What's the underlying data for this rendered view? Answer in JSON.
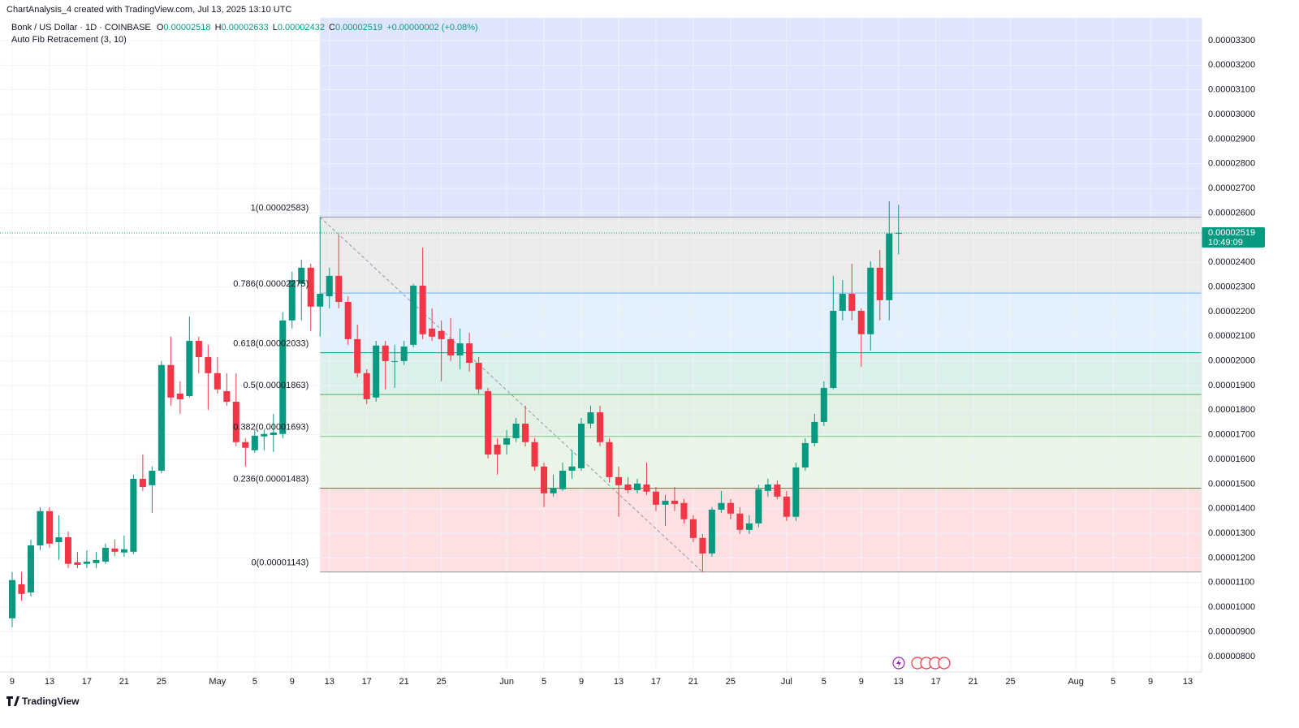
{
  "chart_data": {
    "type": "candlestick",
    "attribution": "ChartAnalysis_4 created with TradingView.com, Jul 13, 2025 13:10 UTC",
    "title": "Bonk / US Dollar · 1D · COINBASE",
    "ohlc_labels": [
      "O",
      "H",
      "L",
      "C"
    ],
    "change": "+0.00000002 (+0.08%)",
    "indicator": "Auto Fib Retracement (3, 10)",
    "brand": "TradingView",
    "countdown": "10:49:09",
    "up_color": "#089981",
    "down_color": "#f23645",
    "grid": true,
    "x": [
      "2025-04-09",
      "2025-04-10",
      "2025-04-11",
      "2025-04-12",
      "2025-04-13",
      "2025-04-14",
      "2025-04-15",
      "2025-04-16",
      "2025-04-17",
      "2025-04-18",
      "2025-04-19",
      "2025-04-20",
      "2025-04-21",
      "2025-04-22",
      "2025-04-23",
      "2025-04-24",
      "2025-04-25",
      "2025-04-26",
      "2025-04-27",
      "2025-04-28",
      "2025-04-29",
      "2025-04-30",
      "2025-05-01",
      "2025-05-02",
      "2025-05-03",
      "2025-05-04",
      "2025-05-05",
      "2025-05-06",
      "2025-05-07",
      "2025-05-08",
      "2025-05-09",
      "2025-05-10",
      "2025-05-11",
      "2025-05-12",
      "2025-05-13",
      "2025-05-14",
      "2025-05-15",
      "2025-05-16",
      "2025-05-17",
      "2025-05-18",
      "2025-05-19",
      "2025-05-20",
      "2025-05-21",
      "2025-05-22",
      "2025-05-23",
      "2025-05-24",
      "2025-05-25",
      "2025-05-26",
      "2025-05-27",
      "2025-05-28",
      "2025-05-29",
      "2025-05-30",
      "2025-05-31",
      "2025-06-01",
      "2025-06-02",
      "2025-06-03",
      "2025-06-04",
      "2025-06-05",
      "2025-06-06",
      "2025-06-07",
      "2025-06-08",
      "2025-06-09",
      "2025-06-10",
      "2025-06-11",
      "2025-06-12",
      "2025-06-13",
      "2025-06-14",
      "2025-06-15",
      "2025-06-16",
      "2025-06-17",
      "2025-06-18",
      "2025-06-19",
      "2025-06-20",
      "2025-06-21",
      "2025-06-22",
      "2025-06-23",
      "2025-06-24",
      "2025-06-25",
      "2025-06-26",
      "2025-06-27",
      "2025-06-28",
      "2025-06-29",
      "2025-06-30",
      "2025-07-01",
      "2025-07-02",
      "2025-07-03",
      "2025-07-04",
      "2025-07-05",
      "2025-07-06",
      "2025-07-07",
      "2025-07-08",
      "2025-07-09",
      "2025-07-10",
      "2025-07-11",
      "2025-07-12",
      "2025-07-13"
    ],
    "open": [
      9.55e-06,
      1.093e-05,
      1.06e-05,
      1.251e-05,
      1.39e-05,
      1.264e-05,
      1.284e-05,
      1.182e-05,
      1.176e-05,
      1.179e-05,
      1.185e-05,
      1.238e-05,
      1.222e-05,
      1.225e-05,
      1.521e-05,
      1.495e-05,
      1.554e-05,
      1.983e-05,
      1.867e-05,
      1.857e-05,
      2.081e-05,
      2.015e-05,
      1.95e-05,
      1.877e-05,
      1.834e-05,
      1.67e-05,
      1.637e-05,
      1.693e-05,
      1.699e-05,
      1.703e-05,
      2.164e-05,
      2.312e-05,
      2.378e-05,
      2.22e-05,
      2.262e-05,
      2.345e-05,
      2.239e-05,
      2.088e-05,
      1.95e-05,
      1.851e-05,
      2.062e-05,
      1.996e-05,
      1.999e-05,
      2.065e-05,
      2.305e-05,
      2.131e-05,
      2.121e-05,
      2.088e-05,
      2.022e-05,
      2.071e-05,
      1.992e-05,
      1.877e-05,
      1.66e-05,
      1.66e-05,
      1.686e-05,
      1.745e-05,
      1.67e-05,
      1.571e-05,
      1.462e-05,
      1.479e-05,
      1.554e-05,
      1.564e-05,
      1.745e-05,
      1.791e-05,
      1.67e-05,
      1.528e-05,
      1.498e-05,
      1.475e-05,
      1.498e-05,
      1.469e-05,
      1.416e-05,
      1.432e-05,
      1.423e-05,
      1.357e-05,
      1.281e-05,
      1.218e-05,
      1.396e-05,
      1.423e-05,
      1.38e-05,
      1.314e-05,
      1.34e-05,
      1.472e-05,
      1.498e-05,
      1.449e-05,
      1.367e-05,
      1.567e-05,
      1.666e-05,
      1.752e-05,
      1.89e-05,
      2.203e-05,
      2.272e-05,
      2.203e-05,
      2.108e-05,
      2.378e-05,
      2.246e-05,
      2.518e-05
    ],
    "high": [
      1.143e-05,
      1.143e-05,
      1.274e-05,
      1.406e-05,
      1.406e-05,
      1.373e-05,
      1.307e-05,
      1.225e-05,
      1.231e-05,
      1.225e-05,
      1.258e-05,
      1.274e-05,
      1.291e-05,
      1.538e-05,
      1.62e-05,
      1.571e-05,
      1.999e-05,
      2.098e-05,
      1.917e-05,
      2.18e-05,
      2.098e-05,
      2.065e-05,
      2.015e-05,
      1.95e-05,
      1.95e-05,
      1.686e-05,
      1.719e-05,
      1.719e-05,
      1.785e-05,
      2.197e-05,
      2.361e-05,
      2.411e-05,
      2.394e-05,
      2.583e-05,
      2.378e-05,
      2.51e-05,
      2.262e-05,
      2.147e-05,
      1.966e-05,
      2.081e-05,
      2.081e-05,
      2.065e-05,
      2.081e-05,
      2.312e-05,
      2.46e-05,
      2.213e-05,
      2.164e-05,
      2.174e-05,
      2.131e-05,
      2.114e-05,
      2.015e-05,
      1.89e-05,
      1.686e-05,
      1.719e-05,
      1.768e-05,
      1.818e-05,
      1.686e-05,
      1.587e-05,
      1.538e-05,
      1.587e-05,
      1.637e-05,
      1.768e-05,
      1.818e-05,
      1.818e-05,
      1.686e-05,
      1.571e-05,
      1.528e-05,
      1.521e-05,
      1.587e-05,
      1.488e-05,
      1.456e-05,
      1.488e-05,
      1.439e-05,
      1.373e-05,
      1.297e-05,
      1.406e-05,
      1.472e-05,
      1.439e-05,
      1.406e-05,
      1.373e-05,
      1.498e-05,
      1.521e-05,
      1.515e-05,
      1.472e-05,
      1.587e-05,
      1.686e-05,
      1.785e-05,
      1.917e-05,
      2.345e-05,
      2.328e-05,
      2.394e-05,
      2.213e-05,
      2.404e-05,
      2.45e-05,
      2.648e-05,
      2.633e-05
    ],
    "low": [
      9.19e-06,
      1.027e-05,
      1.044e-05,
      1.231e-05,
      1.241e-05,
      1.192e-05,
      1.159e-05,
      1.159e-05,
      1.159e-05,
      1.159e-05,
      1.176e-05,
      1.208e-05,
      1.205e-05,
      1.215e-05,
      1.472e-05,
      1.383e-05,
      1.544e-05,
      1.818e-05,
      1.785e-05,
      1.851e-05,
      1.95e-05,
      1.801e-05,
      1.867e-05,
      1.818e-05,
      1.653e-05,
      1.571e-05,
      1.627e-05,
      1.637e-05,
      1.63e-05,
      1.686e-05,
      2.131e-05,
      2.164e-05,
      2.121e-05,
      2.098e-05,
      2.213e-05,
      2.213e-05,
      2.065e-05,
      1.933e-05,
      1.824e-05,
      1.834e-05,
      1.884e-05,
      1.89e-05,
      1.983e-05,
      2.055e-05,
      2.088e-05,
      2.081e-05,
      1.917e-05,
      1.999e-05,
      1.966e-05,
      1.956e-05,
      1.867e-05,
      1.604e-05,
      1.538e-05,
      1.62e-05,
      1.67e-05,
      1.653e-05,
      1.554e-05,
      1.406e-05,
      1.449e-05,
      1.472e-05,
      1.521e-05,
      1.554e-05,
      1.726e-05,
      1.653e-05,
      1.505e-05,
      1.367e-05,
      1.462e-05,
      1.462e-05,
      1.456e-05,
      1.39e-05,
      1.33e-05,
      1.39e-05,
      1.34e-05,
      1.264e-05,
      1.143e-05,
      1.205e-05,
      1.383e-05,
      1.357e-05,
      1.297e-05,
      1.297e-05,
      1.324e-05,
      1.449e-05,
      1.439e-05,
      1.35e-05,
      1.35e-05,
      1.554e-05,
      1.653e-05,
      1.735e-05,
      1.884e-05,
      2.164e-05,
      2.164e-05,
      1.976e-05,
      2.042e-05,
      2.164e-05,
      2.164e-05,
      2.432e-05
    ],
    "close": [
      1.11e-05,
      1.054e-05,
      1.251e-05,
      1.39e-05,
      1.258e-05,
      1.284e-05,
      1.176e-05,
      1.172e-05,
      1.185e-05,
      1.192e-05,
      1.241e-05,
      1.225e-05,
      1.235e-05,
      1.521e-05,
      1.488e-05,
      1.554e-05,
      1.983e-05,
      1.851e-05,
      1.844e-05,
      2.081e-05,
      2.015e-05,
      1.95e-05,
      1.884e-05,
      1.834e-05,
      1.67e-05,
      1.647e-05,
      1.696e-05,
      1.703e-05,
      1.709e-05,
      2.164e-05,
      2.328e-05,
      2.378e-05,
      2.22e-05,
      2.272e-05,
      2.345e-05,
      2.239e-05,
      2.088e-05,
      1.95e-05,
      1.844e-05,
      2.062e-05,
      1.999e-05,
      1.999e-05,
      2.058e-05,
      2.305e-05,
      2.108e-05,
      2.098e-05,
      2.088e-05,
      2.022e-05,
      2.071e-05,
      1.992e-05,
      1.884e-05,
      1.62e-05,
      1.62e-05,
      1.686e-05,
      1.745e-05,
      1.67e-05,
      1.571e-05,
      1.462e-05,
      1.482e-05,
      1.554e-05,
      1.571e-05,
      1.745e-05,
      1.791e-05,
      1.67e-05,
      1.528e-05,
      1.495e-05,
      1.475e-05,
      1.502e-05,
      1.469e-05,
      1.416e-05,
      1.432e-05,
      1.419e-05,
      1.357e-05,
      1.281e-05,
      1.218e-05,
      1.396e-05,
      1.423e-05,
      1.38e-05,
      1.314e-05,
      1.34e-05,
      1.479e-05,
      1.498e-05,
      1.449e-05,
      1.367e-05,
      1.567e-05,
      1.666e-05,
      1.752e-05,
      1.89e-05,
      2.203e-05,
      2.272e-05,
      2.203e-05,
      2.108e-05,
      2.378e-05,
      2.246e-05,
      2.517e-05,
      2.519e-05
    ],
    "xlim": [
      "2025-04-08",
      "2025-08-15"
    ],
    "xticks": [
      {
        "value": "2025-04-09",
        "label": "9"
      },
      {
        "value": "2025-04-13",
        "label": "13"
      },
      {
        "value": "2025-04-17",
        "label": "17"
      },
      {
        "value": "2025-04-21",
        "label": "21"
      },
      {
        "value": "2025-04-25",
        "label": "25"
      },
      {
        "value": "2025-05-01",
        "label": "May"
      },
      {
        "value": "2025-05-05",
        "label": "5"
      },
      {
        "value": "2025-05-09",
        "label": "9"
      },
      {
        "value": "2025-05-13",
        "label": "13"
      },
      {
        "value": "2025-05-17",
        "label": "17"
      },
      {
        "value": "2025-05-21",
        "label": "21"
      },
      {
        "value": "2025-05-25",
        "label": "25"
      },
      {
        "value": "2025-06-01",
        "label": "Jun"
      },
      {
        "value": "2025-06-05",
        "label": "5"
      },
      {
        "value": "2025-06-09",
        "label": "9"
      },
      {
        "value": "2025-06-13",
        "label": "13"
      },
      {
        "value": "2025-06-17",
        "label": "17"
      },
      {
        "value": "2025-06-21",
        "label": "21"
      },
      {
        "value": "2025-06-25",
        "label": "25"
      },
      {
        "value": "2025-07-01",
        "label": "Jul"
      },
      {
        "value": "2025-07-05",
        "label": "5"
      },
      {
        "value": "2025-07-09",
        "label": "9"
      },
      {
        "value": "2025-07-13",
        "label": "13"
      },
      {
        "value": "2025-07-17",
        "label": "17"
      },
      {
        "value": "2025-07-21",
        "label": "21"
      },
      {
        "value": "2025-07-25",
        "label": "25"
      },
      {
        "value": "2025-08-01",
        "label": "Aug"
      },
      {
        "value": "2025-08-05",
        "label": "5"
      },
      {
        "value": "2025-08-09",
        "label": "9"
      },
      {
        "value": "2025-08-13",
        "label": "13"
      }
    ],
    "ylim": [
      7.37e-06,
      3.392e-05
    ],
    "yticks": [
      {
        "value": 8e-06,
        "label": "0.00000800"
      },
      {
        "value": 9e-06,
        "label": "0.00000900"
      },
      {
        "value": 1e-05,
        "label": "0.00001000"
      },
      {
        "value": 1.1e-05,
        "label": "0.00001100"
      },
      {
        "value": 1.2e-05,
        "label": "0.00001200"
      },
      {
        "value": 1.3e-05,
        "label": "0.00001300"
      },
      {
        "value": 1.4e-05,
        "label": "0.00001400"
      },
      {
        "value": 1.5e-05,
        "label": "0.00001500"
      },
      {
        "value": 1.6e-05,
        "label": "0.00001600"
      },
      {
        "value": 1.7e-05,
        "label": "0.00001700"
      },
      {
        "value": 1.8e-05,
        "label": "0.00001800"
      },
      {
        "value": 1.9e-05,
        "label": "0.00001900"
      },
      {
        "value": 2e-05,
        "label": "0.00002000"
      },
      {
        "value": 2.1e-05,
        "label": "0.00002100"
      },
      {
        "value": 2.2e-05,
        "label": "0.00002200"
      },
      {
        "value": 2.3e-05,
        "label": "0.00002300"
      },
      {
        "value": 2.4e-05,
        "label": "0.00002400"
      },
      {
        "value": 2.5e-05,
        "label": "0.00002500"
      },
      {
        "value": 2.6e-05,
        "label": "0.00002600"
      },
      {
        "value": 2.7e-05,
        "label": "0.00002700"
      },
      {
        "value": 2.8e-05,
        "label": "0.00002800"
      },
      {
        "value": 2.9e-05,
        "label": "0.00002900"
      },
      {
        "value": 3e-05,
        "label": "0.00003000"
      },
      {
        "value": 3.1e-05,
        "label": "0.00003100"
      },
      {
        "value": 3.2e-05,
        "label": "0.00003200"
      },
      {
        "value": 3.3e-05,
        "label": "0.00003300"
      }
    ],
    "fib": {
      "start": "2025-05-12",
      "zone_above_color": "#dfe5fc",
      "trend_line": {
        "from": [
          "2025-05-12",
          2.583e-05
        ],
        "to": [
          "2025-06-22",
          1.143e-05
        ]
      },
      "levels": [
        {
          "label": "1(0.00002583)",
          "price": 2.583e-05,
          "color": "#9598a1",
          "zone_color": "#ebebeb"
        },
        {
          "label": "0.786(0.00002275)",
          "price": 2.275e-05,
          "color": "#64b5f6",
          "zone_color": "#e3f1fc"
        },
        {
          "label": "0.618(0.00002033)",
          "price": 2.033e-05,
          "color": "#089981",
          "zone_color": "#dbefeb"
        },
        {
          "label": "0.5(0.00001863)",
          "price": 1.863e-05,
          "color": "#4caf50",
          "zone_color": "#e2f1e3"
        },
        {
          "label": "0.382(0.00001693)",
          "price": 1.693e-05,
          "color": "#81c784",
          "zone_color": "#e9f5e6"
        },
        {
          "label": "0.236(0.00001483)",
          "price": 1.483e-05,
          "color": "#f23645",
          "zone_color": "#fde0e1"
        },
        {
          "label": "0(0.00001143)",
          "price": 1.143e-05,
          "color": "#9598a1"
        }
      ]
    }
  }
}
